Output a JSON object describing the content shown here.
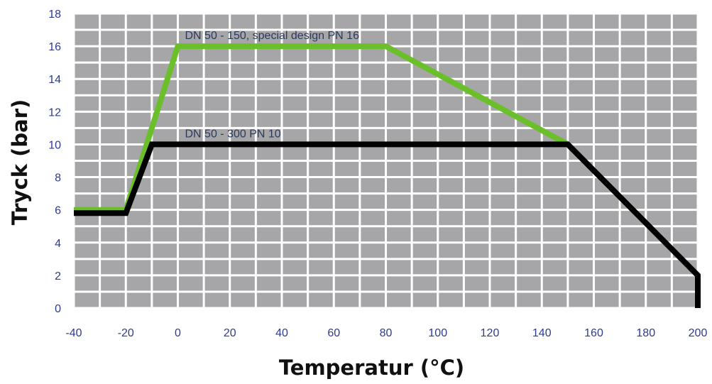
{
  "chart_data": {
    "type": "line",
    "xlabel": "Temperatur (°C)",
    "ylabel": "Tryck (bar)",
    "xlim": [
      -40,
      200
    ],
    "ylim": [
      0,
      18
    ],
    "x_ticks": [
      -40,
      -20,
      0,
      20,
      40,
      60,
      80,
      100,
      120,
      140,
      160,
      180,
      200
    ],
    "y_ticks": [
      0,
      2,
      4,
      6,
      8,
      10,
      12,
      14,
      16,
      18
    ],
    "x_tick_labels": [
      "-40",
      "-20",
      "0",
      "20",
      "40",
      "60",
      "80",
      "100",
      "120",
      "140",
      "160",
      "180",
      "200"
    ],
    "y_tick_labels": [
      "0",
      "2",
      "4",
      "6",
      "8",
      "10",
      "12",
      "14",
      "16",
      "18"
    ],
    "grid": true,
    "series": [
      {
        "name": "DN 50 - 150, special design PN 16",
        "color": "#6abf2a",
        "points": [
          [
            -40,
            6
          ],
          [
            -20,
            6
          ],
          [
            0,
            16
          ],
          [
            80,
            16
          ],
          [
            150,
            10
          ]
        ]
      },
      {
        "name": "DN 50 - 300 PN 10",
        "color": "#000000",
        "points": [
          [
            -40,
            5.8
          ],
          [
            -20,
            5.8
          ],
          [
            -10,
            10
          ],
          [
            150,
            10
          ],
          [
            200,
            2
          ],
          [
            200,
            0
          ]
        ]
      }
    ],
    "annotations": [
      {
        "text": "DN 50 - 150, special design PN 16",
        "x": 0,
        "y": 16.7
      },
      {
        "text": "DN 50 - 300 PN 10",
        "x": 0,
        "y": 10.7
      }
    ],
    "colors": {
      "plot_background": "#a6a6a8",
      "grid": "#ffffff",
      "tick_label": "#2e3b8c",
      "annotation": "#2b3a5c",
      "axis_title": "#111111"
    }
  }
}
